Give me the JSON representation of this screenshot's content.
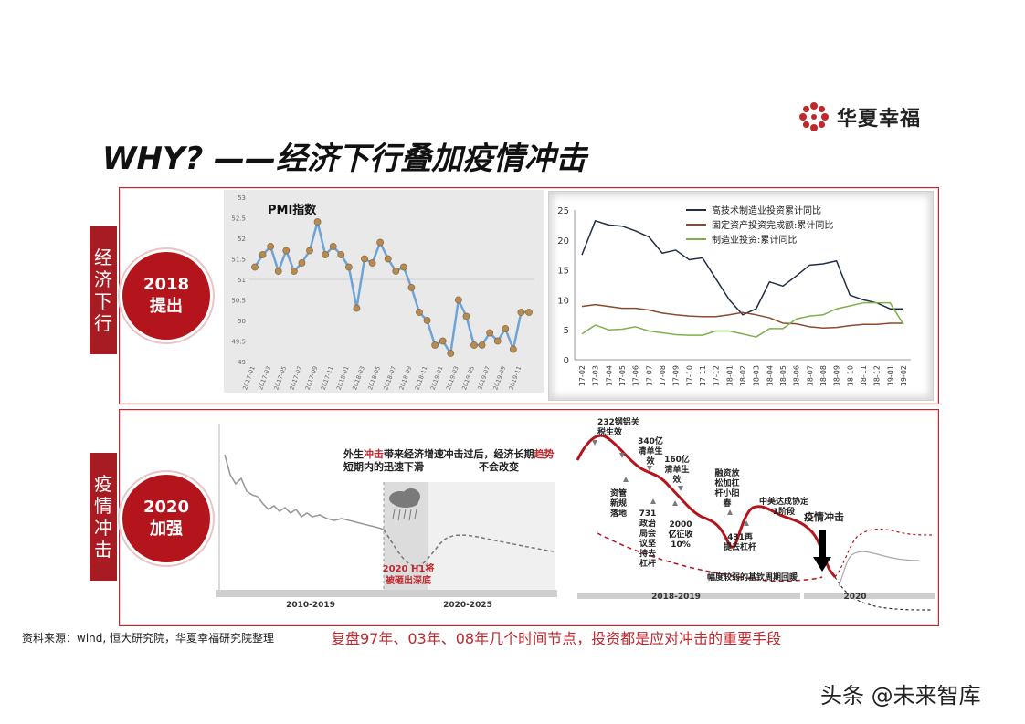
{
  "logo": {
    "text": "华夏幸福",
    "icon": "flower-logo-icon",
    "color": "#c0282d"
  },
  "title": "WHY? ——经济下行叠加疫情冲击",
  "section1": {
    "side_label": [
      "经",
      "济",
      "下",
      "行"
    ],
    "circle_lines": [
      "2018",
      "提出"
    ]
  },
  "section2": {
    "side_label": [
      "疫",
      "情",
      "冲",
      "击"
    ],
    "circle_lines": [
      "2020",
      "加强"
    ]
  },
  "chart_data": [
    {
      "type": "line",
      "title": "PMI指数",
      "x": [
        "2017-01",
        "2017-02",
        "2017-03",
        "2017-04",
        "2017-05",
        "2017-06",
        "2017-07",
        "2017-08",
        "2017-09",
        "2017-10",
        "2017-11",
        "2017-12",
        "2018-01",
        "2018-02",
        "2018-03",
        "2018-04",
        "2018-05",
        "2018-06",
        "2018-07",
        "2018-08",
        "2018-09",
        "2018-10",
        "2018-11",
        "2018-12",
        "2019-01",
        "2019-02",
        "2019-03",
        "2019-04",
        "2019-05",
        "2019-06",
        "2019-07",
        "2019-08",
        "2019-09",
        "2019-10",
        "2019-11",
        "2019-12"
      ],
      "x_tick_labels": [
        "2017-01",
        "2017-03",
        "2017-05",
        "2017-07",
        "2017-09",
        "2017-11",
        "2018-01",
        "2018-03",
        "2018-05",
        "2018-07",
        "2018-09",
        "2018-11",
        "2019-01",
        "2019-03",
        "2019-05",
        "2019-07",
        "2019-09",
        "2019-11"
      ],
      "values": [
        51.3,
        51.6,
        51.8,
        51.2,
        51.7,
        51.2,
        51.4,
        51.7,
        52.4,
        51.6,
        51.8,
        51.6,
        51.3,
        50.3,
        51.5,
        51.4,
        51.9,
        51.5,
        51.2,
        51.3,
        50.8,
        50.2,
        50.0,
        49.4,
        49.5,
        49.2,
        50.5,
        50.1,
        49.4,
        49.4,
        49.7,
        49.5,
        49.8,
        49.3,
        50.2,
        50.2
      ],
      "ylim": [
        49,
        53
      ],
      "y_ticks": [
        49,
        49.5,
        50,
        50.5,
        51,
        51.5,
        52,
        52.5,
        53
      ],
      "reference_line": 51,
      "line_color": "#6fa3d6",
      "marker_color": "#b58b53"
    },
    {
      "type": "line",
      "x": [
        "17-02",
        "17-03",
        "17-04",
        "17-05",
        "17-06",
        "17-07",
        "17-08",
        "17-09",
        "17-10",
        "17-11",
        "17-12",
        "18-01",
        "18-02",
        "18-03",
        "18-04",
        "18-05",
        "18-06",
        "18-07",
        "18-08",
        "18-09",
        "18-10",
        "18-11",
        "18-12",
        "19-01",
        "19-02"
      ],
      "ylim": [
        0,
        25
      ],
      "y_ticks": [
        0,
        5,
        10,
        15,
        20,
        25
      ],
      "legend_position": "top-right",
      "series": [
        {
          "name": "高技术制造业投资累计同比",
          "color": "#1f2f44",
          "values": [
            17.5,
            23.2,
            22.5,
            22.3,
            21.5,
            20.5,
            17.8,
            18.3,
            16.7,
            17.0,
            13.5,
            10.0,
            7.5,
            8.5,
            13.0,
            12.3,
            14.0,
            15.8,
            16.0,
            16.5,
            10.8,
            10.0,
            9.5,
            8.5,
            8.5
          ]
        },
        {
          "name": "固定资产投资完成额:累计同比",
          "color": "#8a4a2c",
          "values": [
            8.9,
            9.2,
            8.9,
            8.6,
            8.6,
            8.3,
            7.8,
            7.5,
            7.3,
            7.2,
            7.2,
            7.5,
            7.9,
            7.5,
            7.0,
            6.1,
            6.0,
            5.5,
            5.3,
            5.4,
            5.7,
            5.9,
            5.9,
            6.1,
            6.1
          ]
        },
        {
          "name": "制造业投资:累计同比",
          "color": "#7fb04e",
          "values": [
            4.3,
            5.8,
            5.0,
            5.1,
            5.5,
            4.8,
            4.5,
            4.2,
            4.1,
            4.1,
            4.8,
            4.8,
            4.3,
            3.8,
            5.2,
            5.2,
            6.8,
            7.3,
            7.5,
            8.5,
            9.0,
            9.5,
            9.5,
            9.5,
            5.9
          ]
        }
      ]
    }
  ],
  "covid_left": {
    "note1_parts": [
      "外生",
      "冲击",
      "带来经济增速短期内的迅速下滑"
    ],
    "note2_parts": [
      "冲击过后，经济长期",
      "趋势",
      "不会改变"
    ],
    "trough_label": "2020 H1将被砸出深底",
    "period_labels": [
      "2010-2019",
      "2020-2025"
    ],
    "storm_icon": "storm-cloud-icon"
  },
  "covid_right": {
    "annotations": [
      "232钢铝关税生效",
      "340亿清单生效",
      "160亿清单生效",
      "资管新规落地",
      "731政治局会议坚持去杠杆",
      "2000亿征收10%",
      "融资放松加杠杆小阳春",
      "431再提去杠杆",
      "中美达成协定1阶段",
      "疫情冲击",
      "幅度较弱的基钦周期回暖"
    ],
    "period_labels": [
      "2018-2019",
      "2020"
    ]
  },
  "source": "资料来源：wind, 恒大研究院，华夏幸福研究院整理",
  "conclusion": "复盘97年、03年、08年几个时间节点，投资都是应对冲击的重要手段",
  "watermark": "头条 @未来智库"
}
